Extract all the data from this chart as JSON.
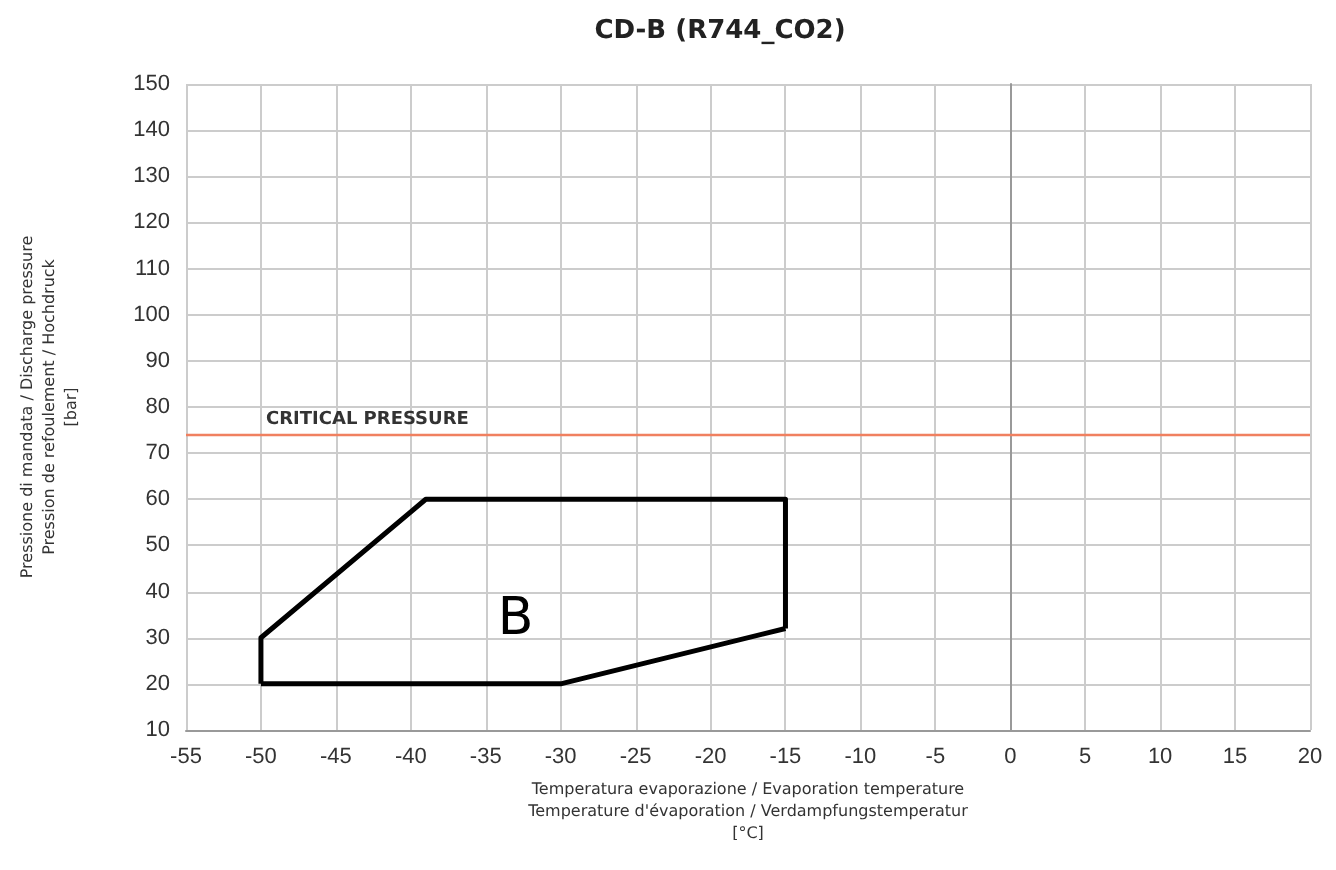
{
  "chart_data": {
    "type": "line",
    "title": "CD-B (R744_CO2)",
    "xlabel": "Temperatura evaporazione / Evaporation temperature\nTemperature d'évaporation / Verdampfungstemperatur\n[°C]",
    "ylabel": "Pressione di mandata / Discharge pressure\nPression de refoulement / Hochdruck\n[bar]",
    "series": [
      {
        "color": "#000000",
        "x": [
          -50,
          -50,
          -39,
          -15,
          -15
        ],
        "values": [
          20,
          30,
          60,
          60,
          32
        ]
      },
      {
        "color": "#000000",
        "x": [
          -50,
          -30,
          -15
        ],
        "values": [
          20,
          20,
          32
        ]
      }
    ],
    "xlim": [
      -55,
      20
    ],
    "xticks": [
      -55,
      -50,
      -45,
      -40,
      -35,
      -30,
      -25,
      -20,
      -15,
      -10,
      -5,
      0,
      5,
      10,
      15,
      20
    ],
    "ylim": [
      10,
      150
    ],
    "yticks": [
      10,
      20,
      30,
      40,
      50,
      60,
      70,
      80,
      90,
      100,
      110,
      120,
      130,
      140,
      150
    ],
    "ref_lines": [
      {
        "axis": "y",
        "value": 74,
        "label": "CRITICAL PRESSURE",
        "color": "#f08060"
      }
    ],
    "annotations": [
      "B"
    ],
    "grid": true,
    "marker": "none",
    "line_style": "solid"
  }
}
